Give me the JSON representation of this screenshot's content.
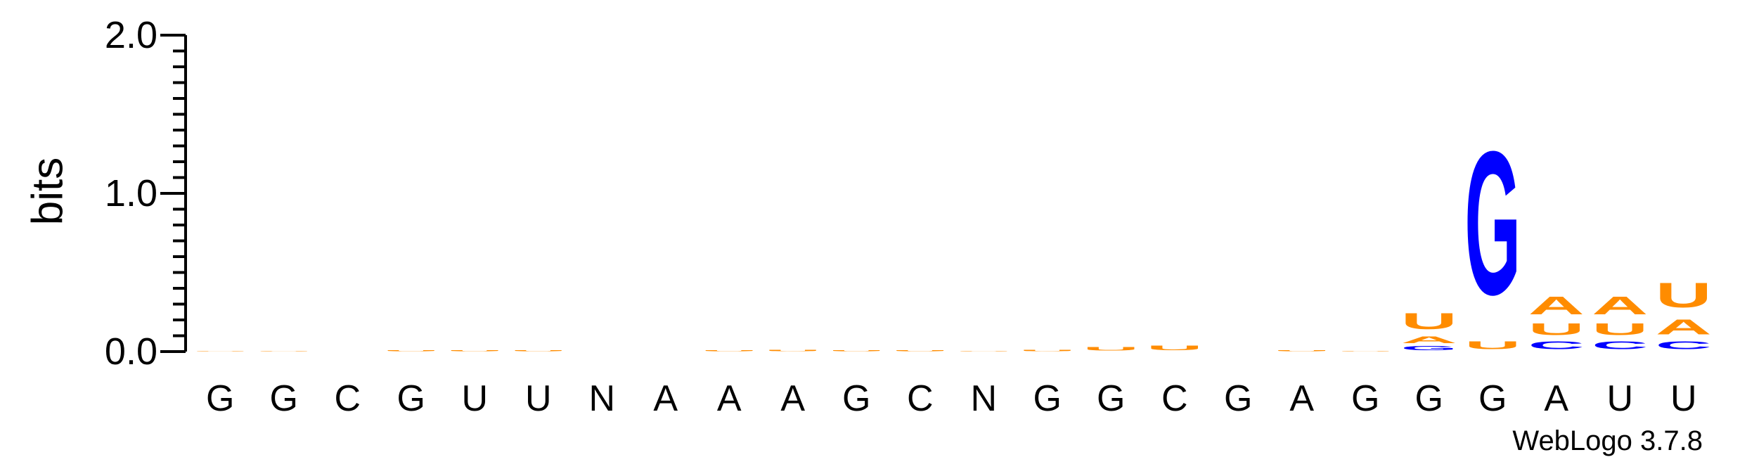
{
  "chart_data": {
    "type": "sequence-logo",
    "ylabel": "bits",
    "ylim": [
      0,
      2.0
    ],
    "yticks": [
      "0.0",
      "1.0",
      "2.0"
    ],
    "credit": "WebLogo 3.7.8",
    "colors": {
      "A": "#ff8c00",
      "U": "#ff8c00",
      "G": "#0000ff",
      "C": "#0000ff"
    },
    "positions": [
      {
        "label": "G",
        "stack": [
          [
            "U",
            0.005
          ]
        ]
      },
      {
        "label": "G",
        "stack": [
          [
            "U",
            0.005
          ]
        ]
      },
      {
        "label": "C",
        "stack": []
      },
      {
        "label": "G",
        "stack": [
          [
            "U",
            0.01
          ]
        ]
      },
      {
        "label": "U",
        "stack": [
          [
            "U",
            0.008
          ]
        ]
      },
      {
        "label": "U",
        "stack": [
          [
            "U",
            0.01
          ]
        ]
      },
      {
        "label": "N",
        "stack": []
      },
      {
        "label": "A",
        "stack": []
      },
      {
        "label": "A",
        "stack": [
          [
            "U",
            0.008
          ]
        ]
      },
      {
        "label": "A",
        "stack": [
          [
            "U",
            0.015
          ]
        ]
      },
      {
        "label": "G",
        "stack": [
          [
            "U",
            0.01
          ]
        ]
      },
      {
        "label": "C",
        "stack": [
          [
            "U",
            0.008
          ]
        ]
      },
      {
        "label": "N",
        "stack": [
          [
            "U",
            0.005
          ]
        ]
      },
      {
        "label": "G",
        "stack": [
          [
            "U",
            0.015
          ]
        ]
      },
      {
        "label": "G",
        "stack": [
          [
            "U",
            0.035
          ]
        ]
      },
      {
        "label": "C",
        "stack": [
          [
            "U",
            0.045
          ]
        ]
      },
      {
        "label": "G",
        "stack": []
      },
      {
        "label": "A",
        "stack": [
          [
            "U",
            0.008
          ]
        ]
      },
      {
        "label": "G",
        "stack": [
          [
            "U",
            0.005
          ]
        ]
      },
      {
        "label": "G",
        "stack": [
          [
            "G",
            0.04
          ],
          [
            "A",
            0.07
          ],
          [
            "U",
            0.16
          ]
        ]
      },
      {
        "label": "G",
        "stack": [
          [
            "U",
            0.08
          ],
          [
            "G",
            1.45
          ]
        ]
      },
      {
        "label": "A",
        "stack": [
          [
            "C",
            0.08
          ],
          [
            "U",
            0.12
          ],
          [
            "A",
            0.18
          ]
        ]
      },
      {
        "label": "U",
        "stack": [
          [
            "C",
            0.08
          ],
          [
            "U",
            0.12
          ],
          [
            "A",
            0.18
          ]
        ]
      },
      {
        "label": "U",
        "stack": [
          [
            "C",
            0.08
          ],
          [
            "A",
            0.15
          ],
          [
            "U",
            0.25
          ]
        ]
      }
    ]
  }
}
